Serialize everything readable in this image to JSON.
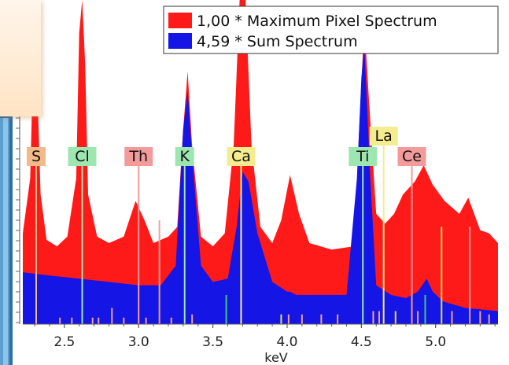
{
  "colors": {
    "max_pixel": "#ff1a1a",
    "sum": "#1515e6",
    "line_green": "#44c87a",
    "line_pink": "#f0a0a0",
    "line_yellow": "#e4dc5a",
    "line_orange": "#e0a060"
  },
  "chart_data": {
    "type": "area",
    "xlabel": "keV",
    "ylabel": "",
    "xlim": [
      2.22,
      5.42
    ],
    "ylim": [
      0,
      100
    ],
    "x_ticks": [
      "2.5",
      "3.0",
      "3.5",
      "4.0",
      "4.5",
      "5.0"
    ],
    "x_tick_values": [
      2.5,
      3.0,
      3.5,
      4.0,
      4.5,
      5.0
    ],
    "legend_position": "top-right",
    "series": [
      {
        "name": "1,00 * Maximum Pixel Spectrum",
        "color": "#ff1a1a",
        "x": [
          2.22,
          2.27,
          2.3,
          2.34,
          2.38,
          2.45,
          2.52,
          2.58,
          2.6,
          2.62,
          2.64,
          2.66,
          2.72,
          2.8,
          2.9,
          2.98,
          3.04,
          3.1,
          3.2,
          3.26,
          3.3,
          3.33,
          3.36,
          3.42,
          3.5,
          3.58,
          3.64,
          3.68,
          3.72,
          3.76,
          3.82,
          3.9,
          3.96,
          4.02,
          4.08,
          4.15,
          4.3,
          4.45,
          4.49,
          4.52,
          4.55,
          4.6,
          4.66,
          4.72,
          4.78,
          4.86,
          4.92,
          4.98,
          5.06,
          5.16,
          5.22,
          5.26,
          5.3,
          5.36,
          5.42
        ],
        "y": [
          28,
          45,
          100,
          40,
          26,
          24,
          27,
          45,
          90,
          100,
          80,
          40,
          27,
          25,
          27,
          38,
          32,
          25,
          27,
          30,
          60,
          78,
          55,
          27,
          24,
          28,
          55,
          100,
          100,
          55,
          30,
          25,
          32,
          46,
          34,
          25,
          23,
          24,
          65,
          93,
          70,
          34,
          31,
          34,
          40,
          44,
          49,
          43,
          38,
          34,
          39,
          34,
          29,
          28,
          25
        ]
      },
      {
        "name": "4,59 * Sum Spectrum",
        "color": "#1515e6",
        "x": [
          2.22,
          2.4,
          2.6,
          2.8,
          3.0,
          3.15,
          3.25,
          3.3,
          3.33,
          3.36,
          3.42,
          3.5,
          3.6,
          3.66,
          3.7,
          3.74,
          3.8,
          3.9,
          4.0,
          4.02,
          4.06,
          4.2,
          4.4,
          4.47,
          4.5,
          4.52,
          4.56,
          4.6,
          4.7,
          4.8,
          4.88,
          4.94,
          4.98,
          5.05,
          5.2,
          5.42
        ],
        "y": [
          16,
          15,
          14,
          13,
          12,
          12,
          18,
          60,
          72,
          52,
          18,
          13,
          14,
          30,
          47,
          44,
          28,
          13,
          10,
          10,
          9,
          9,
          9,
          45,
          76,
          86,
          45,
          12,
          9,
          8,
          10,
          14,
          10,
          7,
          5,
          4
        ]
      }
    ],
    "element_markers": [
      {
        "label": "S",
        "energy": 2.31,
        "color": "#f2b98a"
      },
      {
        "label": "Cl",
        "energy": 2.62,
        "color": "#9de6b0"
      },
      {
        "label": "Th",
        "energy": 3.0,
        "color": "#f39a9a"
      },
      {
        "label": "K",
        "energy": 3.31,
        "color": "#9de6b0"
      },
      {
        "label": "Ca",
        "energy": 3.69,
        "color": "#f4ec8e"
      },
      {
        "label": "Ti",
        "energy": 4.51,
        "color": "#9de6b0"
      },
      {
        "label": "La",
        "energy": 4.65,
        "color": "#f4ec8e"
      },
      {
        "label": "Ce",
        "energy": 4.84,
        "color": "#f39a9a"
      }
    ],
    "reference_lines": [
      {
        "energy": 2.47,
        "color": "#f0a0a0",
        "level": 2
      },
      {
        "energy": 2.55,
        "color": "#f0a0a0",
        "level": 2
      },
      {
        "energy": 2.69,
        "color": "#f0a0a0",
        "level": 2
      },
      {
        "energy": 2.73,
        "color": "#f0a0a0",
        "level": 2
      },
      {
        "energy": 2.82,
        "color": "#f0a0a0",
        "level": 5
      },
      {
        "energy": 2.9,
        "color": "#f0a0a0",
        "level": 2
      },
      {
        "energy": 3.05,
        "color": "#f0a0a0",
        "level": 2
      },
      {
        "energy": 3.14,
        "color": "#f0a0a0",
        "level": 32
      },
      {
        "energy": 3.22,
        "color": "#f0a0a0",
        "level": 2
      },
      {
        "energy": 3.59,
        "color": "#44c87a",
        "level": 9
      },
      {
        "energy": 3.36,
        "color": "#f0a0a0",
        "level": 3
      },
      {
        "energy": 3.96,
        "color": "#e4dc5a",
        "level": 3
      },
      {
        "energy": 4.01,
        "color": "#f0a0a0",
        "level": 3
      },
      {
        "energy": 4.1,
        "color": "#f0a0a0",
        "level": 3
      },
      {
        "energy": 4.23,
        "color": "#f0a0a0",
        "level": 3
      },
      {
        "energy": 4.34,
        "color": "#f0a0a0",
        "level": 3
      },
      {
        "energy": 4.58,
        "color": "#f0a0a0",
        "level": 4
      },
      {
        "energy": 4.62,
        "color": "#f0a0a0",
        "level": 4
      },
      {
        "energy": 4.73,
        "color": "#e4dc5a",
        "level": 4
      },
      {
        "energy": 4.88,
        "color": "#f0a0a0",
        "level": 4
      },
      {
        "energy": 4.93,
        "color": "#44c87a",
        "level": 9
      },
      {
        "energy": 5.04,
        "color": "#e4dc5a",
        "level": 30
      },
      {
        "energy": 5.11,
        "color": "#f0a0a0",
        "level": 4
      },
      {
        "energy": 5.23,
        "color": "#f0a0a0",
        "level": 30
      },
      {
        "energy": 5.3,
        "color": "#f0a0a0",
        "level": 4
      },
      {
        "energy": 5.36,
        "color": "#f0a0a0",
        "level": 3
      }
    ]
  }
}
